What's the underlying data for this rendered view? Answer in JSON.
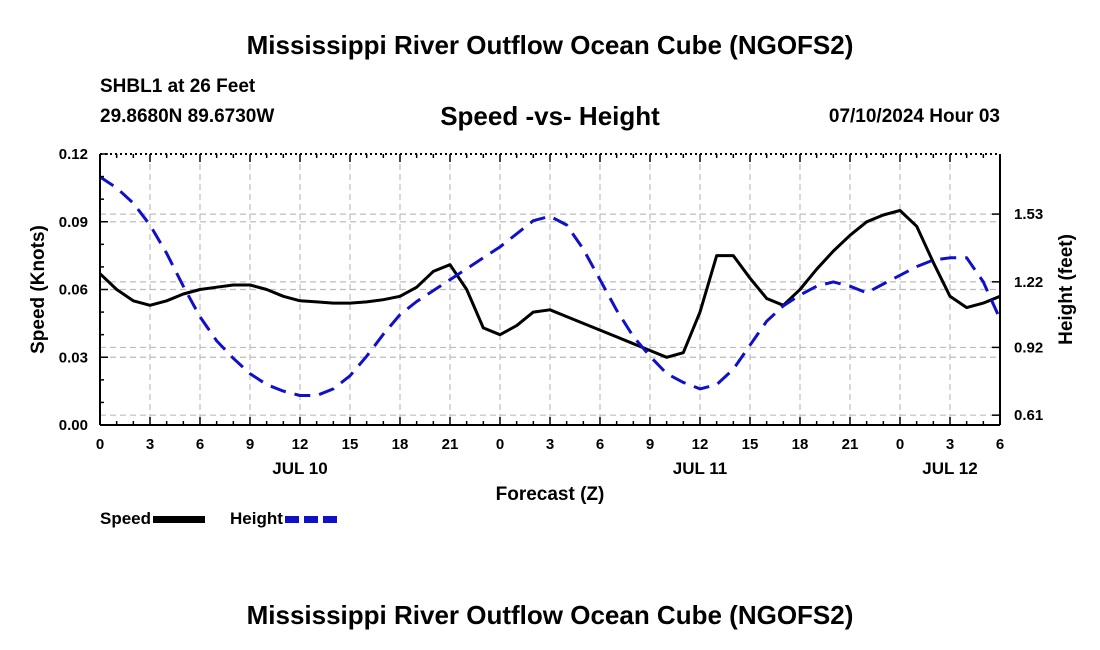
{
  "header": {
    "title": "Mississippi River Outflow Ocean Cube (NGOFS2)",
    "station": "SHBL1 at 26 Feet",
    "location": "29.8680N  89.6730W",
    "subtitle": "Speed -vs- Height",
    "datetime": "07/10/2024 Hour 03"
  },
  "footer": {
    "title": "Mississippi River Outflow Ocean Cube (NGOFS2)"
  },
  "chart_data": {
    "type": "line",
    "xlabel": "Forecast (Z)",
    "ylabel_left": "Speed (Knots)",
    "ylabel_right": "Height (feet)",
    "xlim": [
      0,
      54
    ],
    "ylim_left": [
      0,
      0.12
    ],
    "ylim_right": [
      0.565,
      1.805
    ],
    "x_ticks": [
      0,
      3,
      6,
      9,
      12,
      15,
      18,
      21,
      24,
      27,
      30,
      33,
      36,
      39,
      42,
      45,
      48,
      51,
      54
    ],
    "x_tick_labels": [
      "0",
      "3",
      "6",
      "9",
      "12",
      "15",
      "18",
      "21",
      "0",
      "3",
      "6",
      "9",
      "12",
      "15",
      "18",
      "21",
      "0",
      "3",
      "6"
    ],
    "day_labels": [
      {
        "x": 12,
        "label": "JUL 10"
      },
      {
        "x": 36,
        "label": "JUL 11"
      },
      {
        "x": 51,
        "label": "JUL 12"
      }
    ],
    "y_left_ticks": [
      0,
      0.03,
      0.06,
      0.09,
      0.12
    ],
    "y_left_tick_labels": [
      "0.00",
      "0.03",
      "0.06",
      "0.09",
      "0.12"
    ],
    "y_right_ticks": [
      0.61,
      0.92,
      1.22,
      1.53
    ],
    "y_right_tick_labels": [
      "0.61",
      "0.92",
      "1.22",
      "1.53"
    ],
    "grid": true,
    "legend": [
      {
        "name": "Speed",
        "color": "#000000",
        "style": "solid"
      },
      {
        "name": "Height",
        "color": "#1010c8",
        "style": "dashed"
      }
    ],
    "series": [
      {
        "name": "Speed",
        "axis": "left",
        "color": "#000000",
        "x": [
          0,
          1,
          2,
          3,
          4,
          5,
          6,
          7,
          8,
          9,
          10,
          11,
          12,
          13,
          14,
          15,
          16,
          17,
          18,
          19,
          20,
          21,
          22,
          23,
          24,
          25,
          26,
          27,
          28,
          29,
          30,
          31,
          32,
          33,
          34,
          35,
          36,
          37,
          38,
          39,
          40,
          41,
          42,
          43,
          44,
          45,
          46,
          47,
          48,
          49,
          50,
          51,
          52,
          53,
          54
        ],
        "values": [
          0.067,
          0.06,
          0.055,
          0.053,
          0.055,
          0.058,
          0.06,
          0.061,
          0.062,
          0.062,
          0.06,
          0.057,
          0.055,
          0.0545,
          0.054,
          0.054,
          0.0545,
          0.0555,
          0.057,
          0.061,
          0.068,
          0.071,
          0.06,
          0.043,
          0.04,
          0.044,
          0.05,
          0.051,
          0.048,
          0.045,
          0.042,
          0.039,
          0.036,
          0.033,
          0.03,
          0.032,
          0.05,
          0.075,
          0.075,
          0.065,
          0.056,
          0.053,
          0.06,
          0.069,
          0.077,
          0.084,
          0.09,
          0.093,
          0.095,
          0.088,
          0.072,
          0.057,
          0.052,
          0.054,
          0.057
        ]
      },
      {
        "name": "Height",
        "axis": "right",
        "color": "#1010c8",
        "x": [
          0,
          1,
          2,
          3,
          4,
          5,
          6,
          7,
          8,
          9,
          10,
          11,
          12,
          13,
          14,
          15,
          16,
          17,
          18,
          19,
          20,
          21,
          22,
          23,
          24,
          25,
          26,
          27,
          28,
          29,
          30,
          31,
          32,
          33,
          34,
          35,
          36,
          37,
          38,
          39,
          40,
          41,
          42,
          43,
          44,
          45,
          46,
          47,
          48,
          49,
          50,
          51,
          52,
          53,
          54
        ],
        "values": [
          1.7,
          1.65,
          1.58,
          1.48,
          1.35,
          1.2,
          1.06,
          0.95,
          0.87,
          0.8,
          0.75,
          0.72,
          0.7,
          0.7,
          0.73,
          0.79,
          0.88,
          0.98,
          1.07,
          1.13,
          1.18,
          1.23,
          1.28,
          1.33,
          1.38,
          1.44,
          1.5,
          1.52,
          1.48,
          1.37,
          1.23,
          1.09,
          0.97,
          0.88,
          0.8,
          0.76,
          0.73,
          0.75,
          0.82,
          0.93,
          1.04,
          1.11,
          1.16,
          1.2,
          1.22,
          1.2,
          1.17,
          1.21,
          1.25,
          1.29,
          1.32,
          1.33,
          1.33,
          1.22,
          1.05
        ]
      }
    ]
  }
}
